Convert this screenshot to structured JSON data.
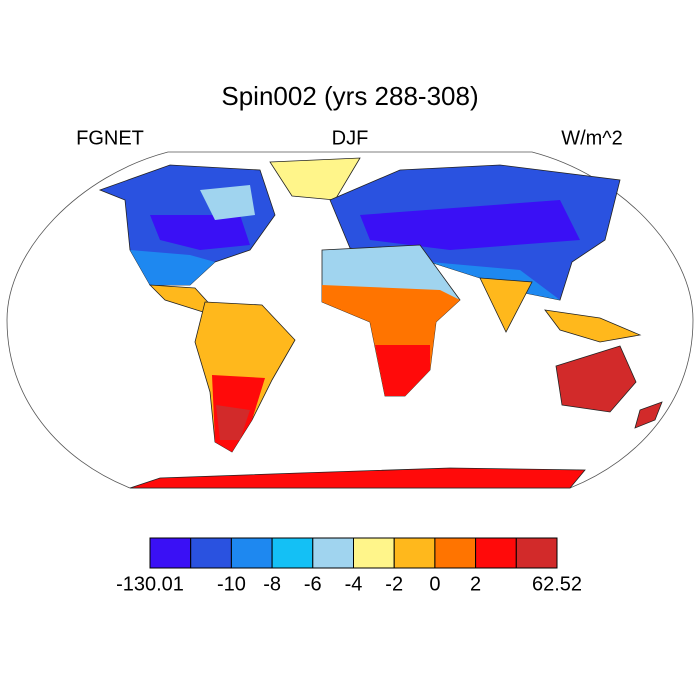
{
  "title": "Spin002 (yrs 288-308)",
  "left_label": "FGNET",
  "center_label": "DJF",
  "right_label": "W/m^2",
  "colorbar": {
    "colors": [
      "#3a10f5",
      "#2a52e0",
      "#1e88f0",
      "#14c0f5",
      "#a0d4ef",
      "#fff58a",
      "#ffb81c",
      "#ff7400",
      "#ff0a0a",
      "#d22a2a"
    ],
    "labels": [
      -130.01,
      null,
      -10,
      -8,
      -6,
      -4,
      -2,
      0,
      2,
      null,
      62.52
    ]
  }
}
